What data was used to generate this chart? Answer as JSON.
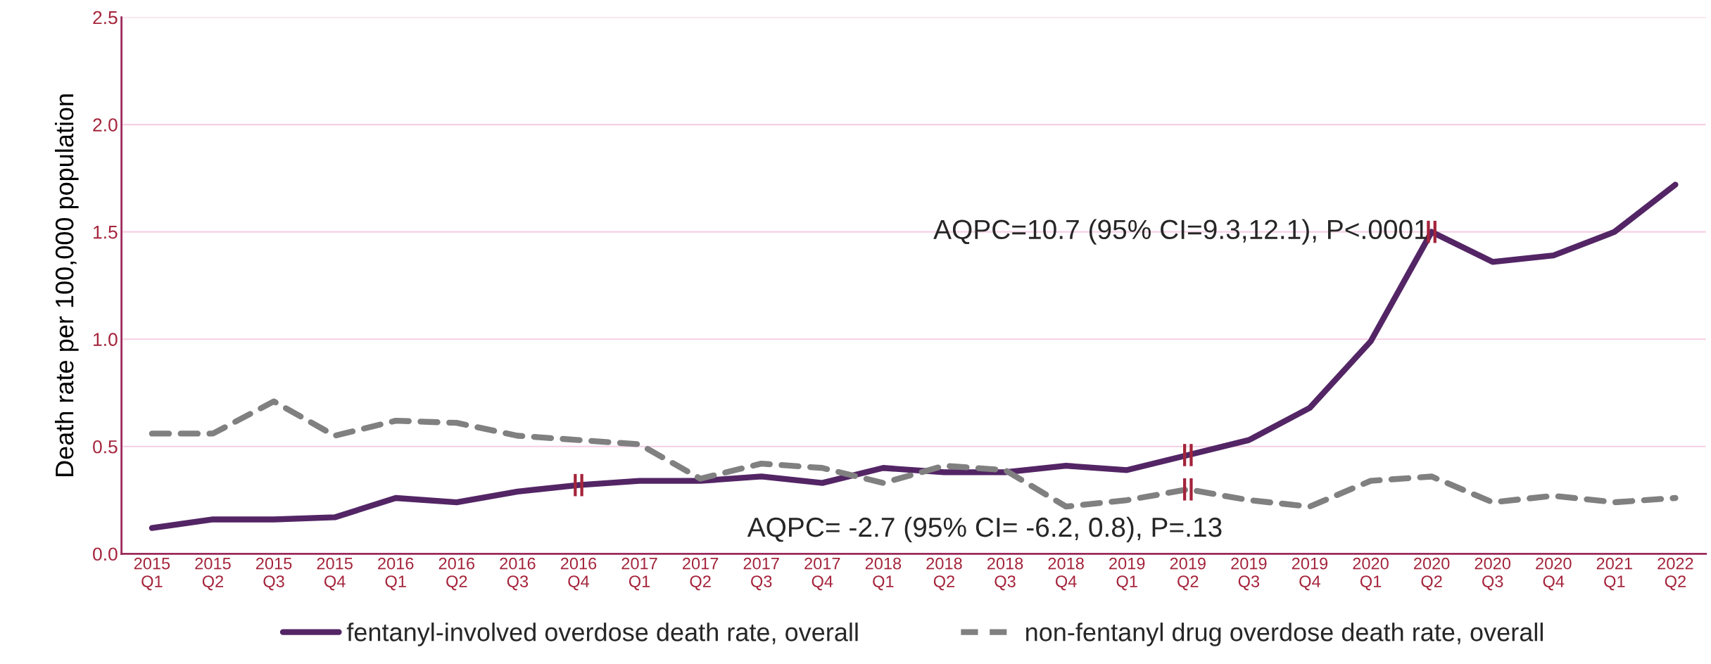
{
  "chart_data": {
    "type": "line",
    "categories": [
      "2015\nQ1",
      "2015\nQ2",
      "2015\nQ3",
      "2015\nQ4",
      "2016\nQ1",
      "2016\nQ2",
      "2016\nQ3",
      "2016\nQ4",
      "2017\nQ1",
      "2017\nQ2",
      "2017\nQ3",
      "2017\nQ4",
      "2018\nQ1",
      "2018\nQ2",
      "2018\nQ3",
      "2018\nQ4",
      "2019\nQ1",
      "2019\nQ2",
      "2019\nQ3",
      "2019\nQ4",
      "2020\nQ1",
      "2020\nQ2",
      "2020\nQ3",
      "2020\nQ4",
      "2021\nQ1",
      "2022\nQ2"
    ],
    "ylabel": "Death rate per 100,000 population",
    "ylim": [
      0,
      2.5
    ],
    "yticks": [
      {
        "value": 0,
        "label": "0.0"
      },
      {
        "value": 0.5,
        "label": "0.5"
      },
      {
        "value": 1,
        "label": "1.0"
      },
      {
        "value": 1.5,
        "label": "1.5"
      },
      {
        "value": 2,
        "label": "2.0"
      },
      {
        "value": 2.5,
        "label": "2.5"
      }
    ],
    "series": [
      {
        "name": "fentanyl-involved overdose death rate, overall",
        "color": "#532565",
        "line_style": "solid",
        "values": [
          0.12,
          0.16,
          0.16,
          0.17,
          0.26,
          0.24,
          0.29,
          0.32,
          0.34,
          0.34,
          0.36,
          0.33,
          0.4,
          0.38,
          0.38,
          0.41,
          0.39,
          0.46,
          0.53,
          0.68,
          0.99,
          1.5,
          1.36,
          1.39,
          1.5,
          1.72
        ]
      },
      {
        "name": "non-fentanyl drug overdose death rate, overall",
        "color": "#808080",
        "line_style": "dashed",
        "values": [
          0.56,
          0.56,
          0.71,
          0.55,
          0.62,
          0.61,
          0.55,
          0.53,
          0.51,
          0.35,
          0.42,
          0.4,
          0.33,
          0.41,
          0.39,
          0.22,
          0.25,
          0.3,
          0.25,
          0.22,
          0.34,
          0.36,
          0.24,
          0.27,
          0.24,
          0.26
        ]
      }
    ],
    "annotations": [
      {
        "text": "AQPC=10.7 (95% CI=9.3,12.1), P<.0001",
        "x": "2020\nQ2",
        "y": 1.5
      },
      "AQPC= -2.7 (95% CI= -6.2, 0.8), P=.13",
      {
        "text": "||",
        "x": "2016\nQ4",
        "y": 0.32
      },
      {
        "text": "||",
        "x": "2019\nQ2",
        "y": 0.46
      },
      {
        "text": "||",
        "x": "2019\nQ2",
        "y": 0.3
      },
      {
        "text": "||",
        "x": "2020\nQ2",
        "y": 1.5
      }
    ],
    "grid": "y",
    "legend": "bottom",
    "marker": "none"
  }
}
